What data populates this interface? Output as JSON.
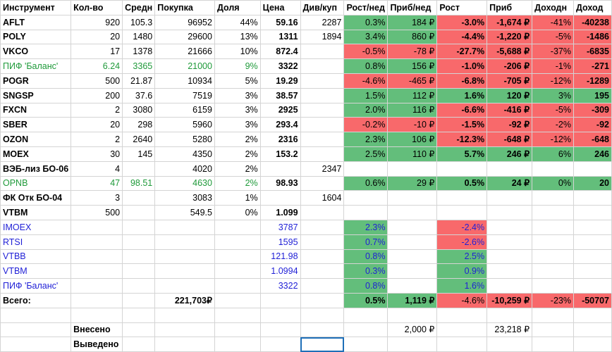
{
  "headers": [
    "Инструмент",
    "Кол-во",
    "Средн",
    "Покупка",
    "Доля",
    "Цена",
    "Див/куп",
    "Рост/нед",
    "Приб/нед",
    "Рост",
    "Приб",
    "Доходн",
    "Доход"
  ],
  "rows": [
    {
      "name": "AFLT",
      "style": "normal",
      "qty": "920",
      "avg": "105.3",
      "buy": "96952",
      "share": "44%",
      "price": "59.16",
      "div": "2287",
      "wk": "0.3%",
      "wk_c": "green",
      "pwk": "184 ₽",
      "pwk_c": "green",
      "gr": "-3.0%",
      "gr_c": "red",
      "pr": "-1,674 ₽",
      "pr_c": "red",
      "yld": "-41%",
      "yld_c": "red",
      "inc": "-40238",
      "inc_c": "red"
    },
    {
      "name": "POLY",
      "style": "normal",
      "qty": "20",
      "avg": "1480",
      "buy": "29600",
      "share": "13%",
      "price": "1311",
      "div": "1894",
      "wk": "3.4%",
      "wk_c": "green",
      "pwk": "860 ₽",
      "pwk_c": "green",
      "gr": "-4.4%",
      "gr_c": "red",
      "pr": "-1,220 ₽",
      "pr_c": "red",
      "yld": "-5%",
      "yld_c": "red",
      "inc": "-1486",
      "inc_c": "red"
    },
    {
      "name": "VKCO",
      "style": "normal",
      "qty": "17",
      "avg": "1378",
      "buy": "21666",
      "share": "10%",
      "price": "872.4",
      "div": "",
      "wk": "-0.5%",
      "wk_c": "red",
      "pwk": "-78 ₽",
      "pwk_c": "red",
      "gr": "-27.7%",
      "gr_c": "red",
      "pr": "-5,688 ₽",
      "pr_c": "red",
      "yld": "-37%",
      "yld_c": "red",
      "inc": "-6835",
      "inc_c": "red"
    },
    {
      "name": "ПИФ 'Баланс'",
      "style": "green",
      "qty": "6.24",
      "avg": "3365",
      "buy": "21000",
      "share": "9%",
      "price": "3322",
      "div": "",
      "wk": "0.8%",
      "wk_c": "green",
      "pwk": "156 ₽",
      "pwk_c": "green",
      "gr": "-1.0%",
      "gr_c": "red",
      "pr": "-206 ₽",
      "pr_c": "red",
      "yld": "-1%",
      "yld_c": "red",
      "inc": "-271",
      "inc_c": "red"
    },
    {
      "name": "POGR",
      "style": "normal",
      "qty": "500",
      "avg": "21.87",
      "buy": "10934",
      "share": "5%",
      "price": "19.29",
      "div": "",
      "wk": "-4.6%",
      "wk_c": "red",
      "pwk": "-465 ₽",
      "pwk_c": "red",
      "gr": "-6.8%",
      "gr_c": "red",
      "pr": "-705 ₽",
      "pr_c": "red",
      "yld": "-12%",
      "yld_c": "red",
      "inc": "-1289",
      "inc_c": "red"
    },
    {
      "name": "SNGSP",
      "style": "normal",
      "qty": "200",
      "avg": "37.6",
      "buy": "7519",
      "share": "3%",
      "price": "38.57",
      "div": "",
      "wk": "1.5%",
      "wk_c": "green",
      "pwk": "112 ₽",
      "pwk_c": "green",
      "gr": "1.6%",
      "gr_c": "green",
      "pr": "120 ₽",
      "pr_c": "green",
      "yld": "3%",
      "yld_c": "green",
      "inc": "195",
      "inc_c": "green"
    },
    {
      "name": "FXCN",
      "style": "normal",
      "qty": "2",
      "avg": "3080",
      "buy": "6159",
      "share": "3%",
      "price": "2925",
      "div": "",
      "wk": "2.0%",
      "wk_c": "green",
      "pwk": "116 ₽",
      "pwk_c": "green",
      "gr": "-6.6%",
      "gr_c": "red",
      "pr": "-416 ₽",
      "pr_c": "red",
      "yld": "-5%",
      "yld_c": "red",
      "inc": "-309",
      "inc_c": "red"
    },
    {
      "name": "SBER",
      "style": "normal",
      "qty": "20",
      "avg": "298",
      "buy": "5960",
      "share": "3%",
      "price": "293.4",
      "div": "",
      "wk": "-0.2%",
      "wk_c": "red",
      "pwk": "-10 ₽",
      "pwk_c": "red",
      "gr": "-1.5%",
      "gr_c": "red",
      "pr": "-92 ₽",
      "pr_c": "red",
      "yld": "-2%",
      "yld_c": "red",
      "inc": "-92",
      "inc_c": "red"
    },
    {
      "name": "OZON",
      "style": "normal",
      "qty": "2",
      "avg": "2640",
      "buy": "5280",
      "share": "2%",
      "price": "2316",
      "div": "",
      "wk": "2.3%",
      "wk_c": "green",
      "pwk": "106 ₽",
      "pwk_c": "green",
      "gr": "-12.3%",
      "gr_c": "red",
      "pr": "-648 ₽",
      "pr_c": "red",
      "yld": "-12%",
      "yld_c": "red",
      "inc": "-648",
      "inc_c": "red"
    },
    {
      "name": "MOEX",
      "style": "normal",
      "qty": "30",
      "avg": "145",
      "buy": "4350",
      "share": "2%",
      "price": "153.2",
      "div": "",
      "wk": "2.5%",
      "wk_c": "green",
      "pwk": "110 ₽",
      "pwk_c": "green",
      "gr": "5.7%",
      "gr_c": "green",
      "pr": "246 ₽",
      "pr_c": "green",
      "yld": "6%",
      "yld_c": "green",
      "inc": "246",
      "inc_c": "green"
    },
    {
      "name": "ВЭБ-лиз БО-06",
      "style": "normal",
      "qty": "4",
      "avg": "",
      "buy": "4020",
      "share": "2%",
      "price": "",
      "div": "2347",
      "wk": "",
      "wk_c": "",
      "pwk": "",
      "pwk_c": "",
      "gr": "",
      "gr_c": "",
      "pr": "",
      "pr_c": "",
      "yld": "",
      "yld_c": "",
      "inc": "",
      "inc_c": ""
    },
    {
      "name": "OPNB",
      "style": "green",
      "qty": "47",
      "avg": "98.51",
      "buy": "4630",
      "share": "2%",
      "price": "98.93",
      "div": "",
      "wk": "0.6%",
      "wk_c": "green",
      "pwk": "29 ₽",
      "pwk_c": "green",
      "gr": "0.5%",
      "gr_c": "green",
      "pr": "24 ₽",
      "pr_c": "green",
      "yld": "0%",
      "yld_c": "green",
      "inc": "20",
      "inc_c": "green"
    },
    {
      "name": "ФК Отк БО-04",
      "style": "normal",
      "qty": "3",
      "avg": "",
      "buy": "3083",
      "share": "1%",
      "price": "",
      "div": "1604",
      "wk": "",
      "wk_c": "",
      "pwk": "",
      "pwk_c": "",
      "gr": "",
      "gr_c": "",
      "pr": "",
      "pr_c": "",
      "yld": "",
      "yld_c": "",
      "inc": "",
      "inc_c": ""
    },
    {
      "name": "VTBM",
      "style": "normal",
      "qty": "500",
      "avg": "",
      "buy": "549.5",
      "share": "0%",
      "price": "1.099",
      "div": "",
      "wk": "",
      "wk_c": "",
      "pwk": "",
      "pwk_c": "",
      "gr": "",
      "gr_c": "",
      "pr": "",
      "pr_c": "",
      "yld": "",
      "yld_c": "",
      "inc": "",
      "inc_c": ""
    }
  ],
  "indices": [
    {
      "name": "IMOEX",
      "price": "3787",
      "wk": "2.3%",
      "wk_c": "green",
      "gr": "-2.4%",
      "gr_c": "red"
    },
    {
      "name": "RTSI",
      "price": "1595",
      "wk": "0.7%",
      "wk_c": "green",
      "gr": "-2.6%",
      "gr_c": "red"
    },
    {
      "name": "VTBB",
      "price": "121.98",
      "wk": "0.8%",
      "wk_c": "green",
      "gr": "2.5%",
      "gr_c": "green"
    },
    {
      "name": "VTBM",
      "price": "1.0994",
      "wk": "0.3%",
      "wk_c": "green",
      "gr": "0.9%",
      "gr_c": "green"
    },
    {
      "name": "ПИФ 'Баланс'",
      "price": "3322",
      "wk": "0.8%",
      "wk_c": "green",
      "gr": "1.6%",
      "gr_c": "green"
    }
  ],
  "total": {
    "label": "Всего:",
    "buy": "221,703₽",
    "wk": "0.5%",
    "pwk": "1,119 ₽",
    "gr": "-4.6%",
    "pr": "-10,259 ₽",
    "yld": "-23%",
    "inc": "-50707"
  },
  "deposited": {
    "label": "Внесено",
    "pwk": "2,000 ₽",
    "pr": "23,218 ₽"
  },
  "withdrawn": {
    "label": "Выведено"
  }
}
